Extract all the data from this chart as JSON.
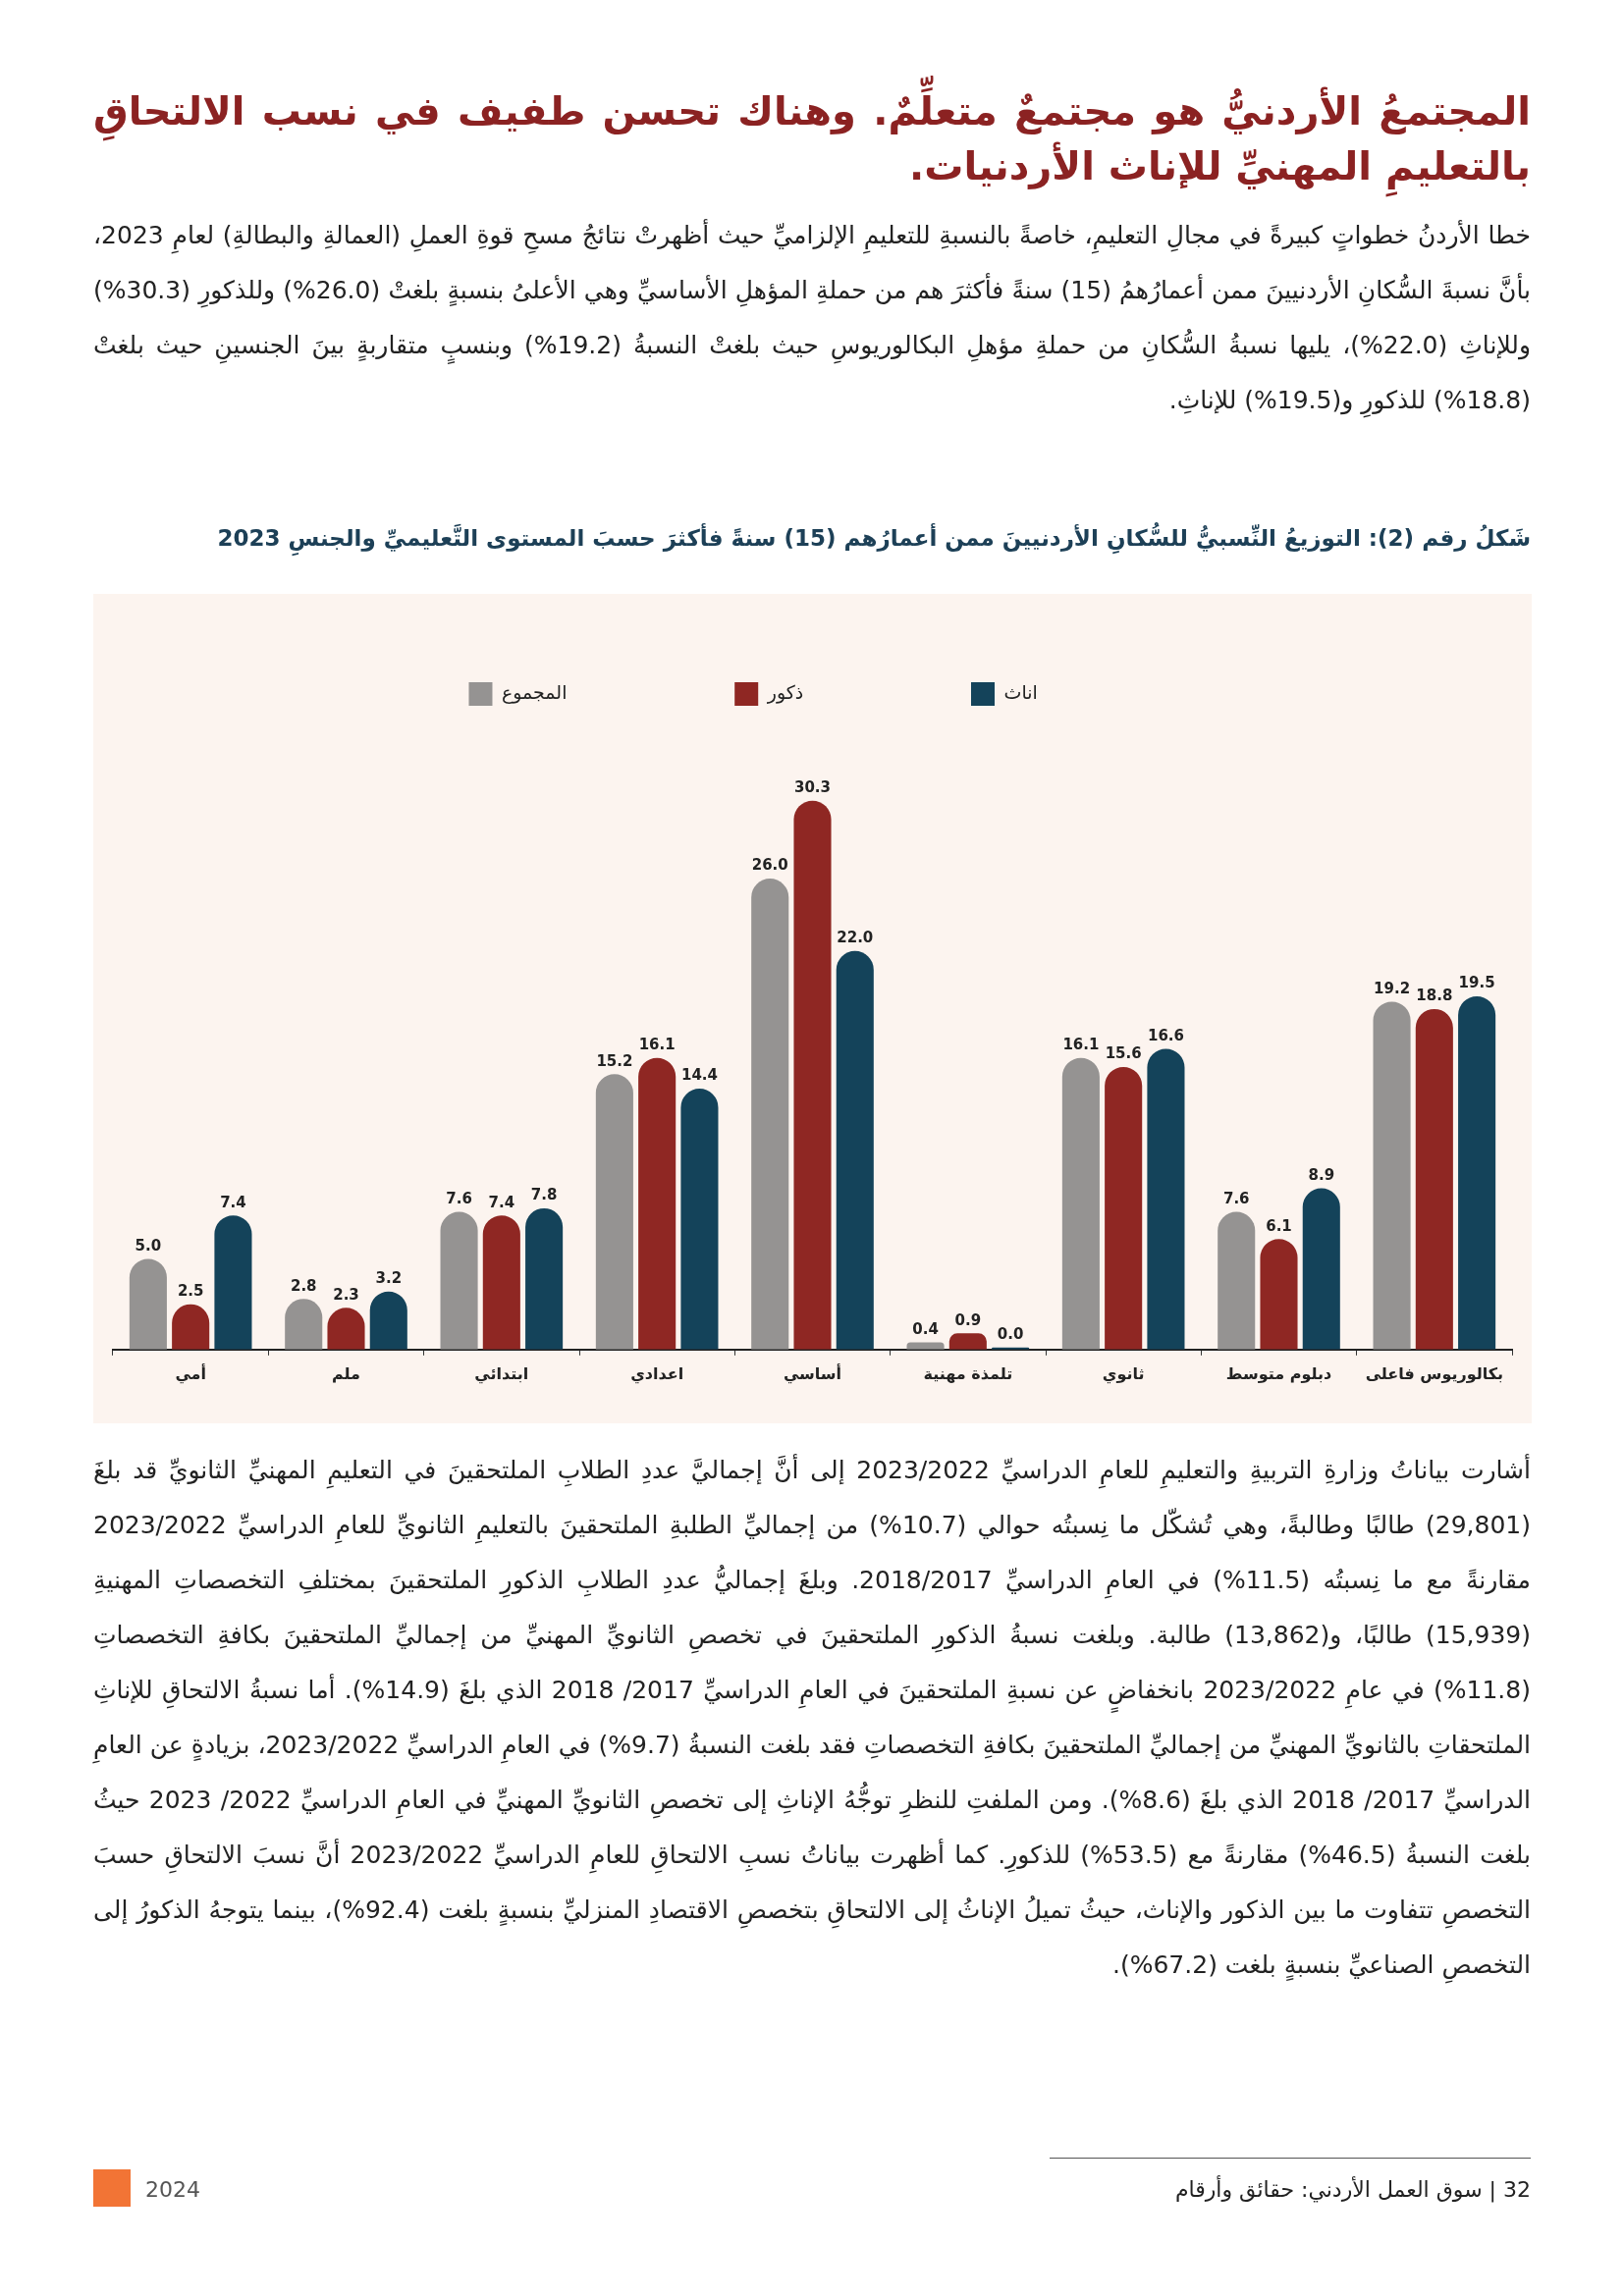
{
  "chart_data": {
    "type": "bar",
    "title": "المجتمعُ الأردنيُّ هو مجتمعٌ متعلِّمٌ. وهناك تحسن طفيف في نسب الالتحاقِ بالتعليمِ المهنيِّ للإناث الأردنيات.",
    "subtitle": "شَكلُ رقم (2): التوزيعُ النِّسبيُّ للسُّكانِ الأردنيينَ ممن أعمارُهم (15) سنةً فأكثرَ حسبَ المستوى التَّعليميِّ والجنسِ 2023",
    "annotations": [
      "خطا الأردنُ خطواتٍ كبيرةً في مجالِ التعليمِ، خاصةً بالنسبةِ للتعليمِ الإلزاميِّ حيث أظهرتْ نتائجُ مسحِ قوةِ العملِ (العمالةِ والبطالةِ) لعامِ 2023، بأنَّ نسبةَ السُّكانِ الأردنيينَ ممن أعمارُهمُ (15) سنةً فأكثرَ هم من حملةِ المؤهلِ الأساسيِّ وهي الأعلىُ بنسبةٍ بلغتْ (26.0%) وللذكورِ (30.3%) وللإناثِ (22.0%)، يليها نسبةُ السُّكانِ من حملةِ مؤهلِ البكالوريوسِ حيث بلغتْ النسبةُ (19.2%) وبنسبٍ متقاربةٍ بينَ الجنسينِ حيث بلغتْ (18.8%) للذكورِ و(19.5%) للإناثِ.",
      "أشارت بياناتُ وزارةِ التربيةِ والتعليمِ للعامِ الدراسيِّ 2023/2022 إلى أنَّ إجماليَّ عددِ الطلابِ الملتحقينَ في التعليمِ المهنيِّ الثانويِّ قد بلغَ (29,801) طالبًا وطالبةً، وهي تُشكّل ما نِسبتُه حوالي (10.7%) من إجماليِّ الطلبةِ الملتحقينَ بالتعليمِ الثانويِّ للعامِ الدراسيِّ 2023/2022 مقارنةً مع ما نِسبتُه (11.5%) في العامِ الدراسيِّ 2018/2017. وبلغَ إجماليُّ عددِ الطلابِ الذكورِ الملتحقينَ بمختلفِ التخصصاتِ المهنيةِ (15,939) طالبًا، و(13,862) طالبة. وبلغت نسبةُ الذكورِ الملتحقينَ في تخصصِ الثانويِّ المهنيِّ من إجماليِّ الملتحقينَ بكافةِ التخصصاتِ (11.8%) في عامِ 2023/2022 بانخفاضٍ عن نسبةِ الملتحقينَ في العامِ الدراسيِّ 2017/ 2018 الذي بلغَ (14.9%). أما نسبةُ الالتحاقِ للإناثِ الملتحقاتِ بالثانويِّ المهنيِّ من إجماليِّ الملتحقينَ بكافةِ التخصصاتِ فقد بلغت النسبةُ (9.7%) في العامِ الدراسيِّ 2023/2022، بزيادةٍ عن العامِ الدراسيِّ 2017/ 2018 الذي بلغَ (8.6%). ومن الملفتِ للنظرِ توجُّهُ الإناثِ إلى تخصصِ الثانويِّ المهنيِّ في العامِ الدراسيِّ 2022/ 2023 حيثُ بلغت النسبةُ (46.5%) مقارنةً مع (53.5%) للذكورِ. كما أظهرت بياناتُ نسبِ الالتحاقِ للعامِ الدراسيِّ 2023/2022 أنَّ نسبَ الالتحاقِ حسبَ التخصصِ تتفاوت ما بين الذكور والإناث، حيثُ تميلُ الإناثُ إلى الالتحاقِ بتخصصِ الاقتصادِ المنزليِّ بنسبةٍ بلغت (92.4%)، بينما يتوجهُ الذكورُ إلى التخصصِ الصناعيِّ بنسبةٍ بلغت (67.2%).",
      "32 | سوق العمل الأردني: حقائق وأرقام",
      "2024"
    ],
    "categories": [
      "أمي",
      "ملم",
      "ابتدائي",
      "اعدادي",
      "أساسي",
      "تلمذة مهنية",
      "ثانوي",
      "دبلوم متوسط",
      "بكالوريوس فاعلى"
    ],
    "series": [
      {
        "name": "المجموع",
        "color": "#959392",
        "values": [
          5.0,
          2.8,
          7.6,
          15.2,
          26.0,
          0.4,
          16.1,
          7.6,
          19.2
        ],
        "value_labels": [
          "5.0",
          "2.8",
          "7.6",
          "15.2",
          "26.0",
          "0.4",
          "16.1",
          "7.6",
          "19.2"
        ]
      },
      {
        "name": "ذكور",
        "color": "#8f2723",
        "values": [
          2.5,
          2.3,
          7.4,
          16.1,
          30.3,
          0.9,
          15.6,
          6.1,
          18.8
        ],
        "value_labels": [
          "2.5",
          "2.3",
          "7.4",
          "16.1",
          "30.3",
          "0.9",
          "15.6",
          "6.1",
          "18.8"
        ]
      },
      {
        "name": "اناث",
        "color": "#14435a",
        "values": [
          7.4,
          3.2,
          7.8,
          14.4,
          22.0,
          0.0,
          16.6,
          8.9,
          19.5
        ],
        "value_labels": [
          "7.4",
          "3.2",
          "7.8",
          "14.4",
          "22.0",
          "0.0",
          "16.6",
          "8.9",
          "19.5"
        ]
      }
    ],
    "legend": "top",
    "tick_labels": "x"
  }
}
